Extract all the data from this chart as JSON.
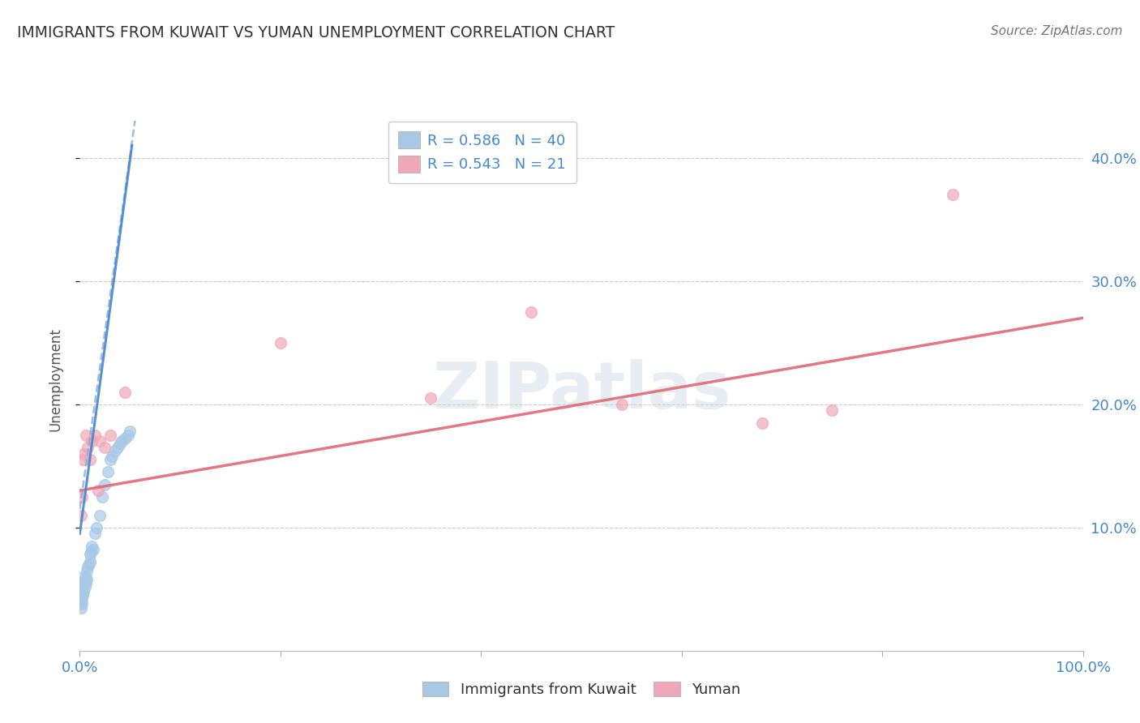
{
  "title": "IMMIGRANTS FROM KUWAIT VS YUMAN UNEMPLOYMENT CORRELATION CHART",
  "source_text": "Source: ZipAtlas.com",
  "ylabel": "Unemployment",
  "watermark": "ZIPatlas",
  "legend_r1": "R = 0.586",
  "legend_n1": "N = 40",
  "legend_r2": "R = 0.543",
  "legend_n2": "N = 21",
  "legend_label1": "Immigrants from Kuwait",
  "legend_label2": "Yuman",
  "xlim": [
    0.0,
    1.0
  ],
  "ylim": [
    0.0,
    0.44
  ],
  "yticks": [
    0.1,
    0.2,
    0.3,
    0.4
  ],
  "blue_scatter_x": [
    0.001,
    0.001,
    0.001,
    0.002,
    0.002,
    0.002,
    0.002,
    0.003,
    0.003,
    0.003,
    0.004,
    0.004,
    0.005,
    0.005,
    0.006,
    0.006,
    0.007,
    0.007,
    0.008,
    0.009,
    0.01,
    0.01,
    0.011,
    0.012,
    0.013,
    0.015,
    0.017,
    0.02,
    0.022,
    0.025,
    0.028,
    0.03,
    0.032,
    0.035,
    0.038,
    0.04,
    0.042,
    0.045,
    0.048,
    0.05
  ],
  "blue_scatter_y": [
    0.035,
    0.04,
    0.045,
    0.038,
    0.042,
    0.05,
    0.055,
    0.045,
    0.05,
    0.06,
    0.048,
    0.055,
    0.052,
    0.058,
    0.055,
    0.06,
    0.058,
    0.065,
    0.068,
    0.07,
    0.072,
    0.078,
    0.08,
    0.085,
    0.082,
    0.095,
    0.1,
    0.11,
    0.125,
    0.135,
    0.145,
    0.155,
    0.158,
    0.162,
    0.165,
    0.168,
    0.17,
    0.172,
    0.175,
    0.178
  ],
  "pink_scatter_x": [
    0.001,
    0.002,
    0.003,
    0.004,
    0.006,
    0.008,
    0.01,
    0.012,
    0.015,
    0.018,
    0.02,
    0.025,
    0.03,
    0.045,
    0.2,
    0.35,
    0.45,
    0.54,
    0.68,
    0.75,
    0.87
  ],
  "pink_scatter_y": [
    0.11,
    0.125,
    0.155,
    0.16,
    0.175,
    0.165,
    0.155,
    0.17,
    0.175,
    0.13,
    0.17,
    0.165,
    0.175,
    0.21,
    0.25,
    0.205,
    0.275,
    0.2,
    0.185,
    0.195,
    0.37
  ],
  "blue_trend_x": [
    0.0,
    0.055
  ],
  "blue_trend_y": [
    0.115,
    0.43
  ],
  "pink_trend_x": [
    0.0,
    1.0
  ],
  "pink_trend_y": [
    0.13,
    0.27
  ],
  "scatter_size": 100,
  "blue_color": "#a8c8e8",
  "pink_color": "#f0a8b8",
  "blue_line_color": "#4488cc",
  "blue_dash_color": "#88aadd",
  "pink_line_color": "#e06878",
  "title_color": "#333333",
  "axis_label_color": "#4488cc",
  "grid_color": "#cccccc",
  "background_color": "#ffffff"
}
